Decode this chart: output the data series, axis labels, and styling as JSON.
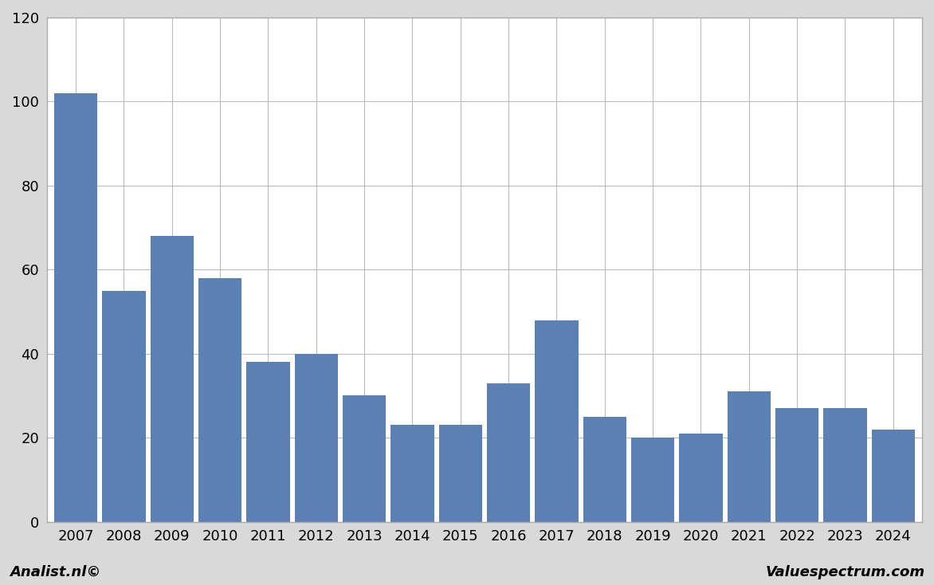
{
  "categories": [
    "2007",
    "2008",
    "2009",
    "2010",
    "2011",
    "2012",
    "2013",
    "2014",
    "2015",
    "2016",
    "2017",
    "2018",
    "2019",
    "2020",
    "2021",
    "2022",
    "2023",
    "2024"
  ],
  "values": [
    102,
    55,
    68,
    58,
    38,
    40,
    30,
    23,
    23,
    33,
    48,
    25,
    20,
    21,
    31,
    27,
    27,
    22
  ],
  "bar_color": "#5b80b4",
  "ylim": [
    0,
    120
  ],
  "yticks": [
    0,
    20,
    40,
    60,
    80,
    100,
    120
  ],
  "plot_bg_color": "#ffffff",
  "fig_bg_color": "#d9d9d9",
  "grid_color": "#bbbbbb",
  "footer_left": "Analist.nl©",
  "footer_right": "Valuespectrum.com",
  "border_color": "#aaaaaa"
}
